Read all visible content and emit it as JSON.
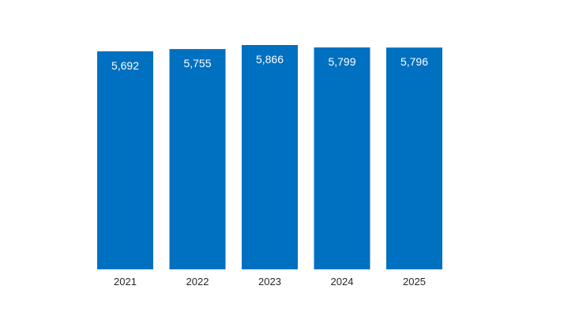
{
  "chart_data": {
    "type": "bar",
    "title": "",
    "xlabel": "",
    "ylabel": "",
    "categories": [
      "2021",
      "2022",
      "2023",
      "2024",
      "2025"
    ],
    "values": [
      5692,
      5755,
      5866,
      5799,
      5796
    ],
    "value_labels": [
      "5,692",
      "5,755",
      "5,866",
      "5,799",
      "5,796"
    ],
    "ylim": [
      0,
      5866
    ],
    "grid": false,
    "legend": "none",
    "colors": {
      "bar": "#0070c0",
      "value_label": "#ffffff",
      "tick_label": "#262626"
    }
  }
}
